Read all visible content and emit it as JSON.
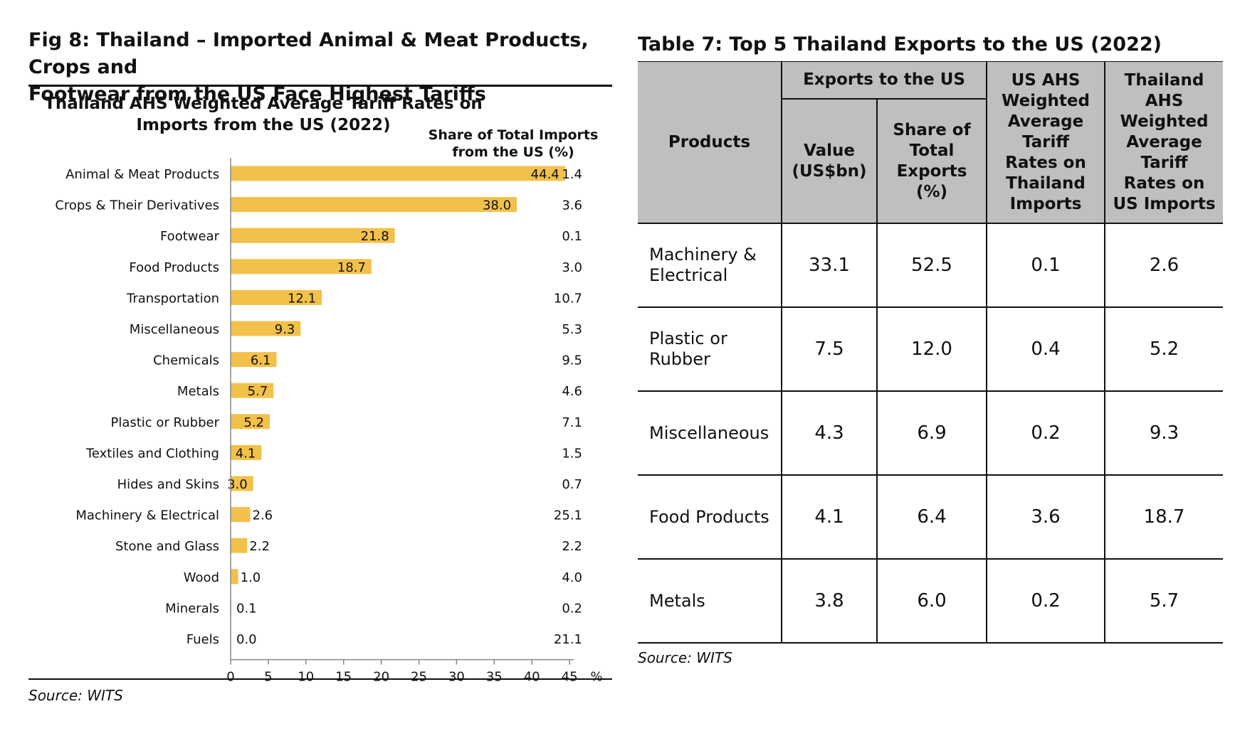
{
  "figure": {
    "title_line1": "Fig 8: Thailand – Imported Animal & Meat Products, Crops and",
    "title_line2": "Footwear from the US Face Highest Tariffs",
    "source": "Source: WITS"
  },
  "chart_data": {
    "type": "bar",
    "orientation": "horizontal",
    "title_line1": "Thailand AHS Weighted Average Tariff Rates on",
    "title_line2": "Imports from the US (2022)",
    "share_header_line1": "Share of Total Imports",
    "share_header_line2": "from the US (%)",
    "x_unit": "%",
    "xlim": [
      0,
      45
    ],
    "x_ticks": [
      "0",
      "5",
      "10",
      "15",
      "20",
      "25",
      "30",
      "35",
      "40",
      "45"
    ],
    "bar_color": "#f2c14b",
    "categories": [
      "Animal & Meat Products",
      "Crops & Their Derivatives",
      "Footwear",
      "Food Products",
      "Transportation",
      "Miscellaneous",
      "Chemicals",
      "Metals",
      "Plastic or Rubber",
      "Textiles and Clothing",
      "Hides and Skins",
      "Machinery & Electrical",
      "Stone and Glass",
      "Wood",
      "Minerals",
      "Fuels"
    ],
    "values": [
      44.4,
      38.0,
      21.8,
      18.7,
      12.1,
      9.3,
      6.1,
      5.7,
      5.2,
      4.1,
      3.0,
      2.6,
      2.2,
      1.0,
      0.1,
      0.0
    ],
    "value_labels": [
      "44.4",
      "38.0",
      "21.8",
      "18.7",
      "12.1",
      "9.3",
      "6.1",
      "5.7",
      "5.2",
      "4.1",
      "3.0",
      "2.6",
      "2.2",
      "1.0",
      "0.1",
      "0.0"
    ],
    "share_labels": [
      "1.4",
      "3.6",
      "0.1",
      "3.0",
      "10.7",
      "5.3",
      "9.5",
      "4.6",
      "7.1",
      "1.5",
      "0.7",
      "25.1",
      "2.2",
      "4.0",
      "0.2",
      "21.1"
    ]
  },
  "table": {
    "title": "Table 7: Top 5 Thailand Exports to the US (2022)",
    "header_products": "Products",
    "header_group": "Exports to the US",
    "header_value": [
      "Value",
      "(US$bn)"
    ],
    "header_share": [
      "Share of",
      "Total",
      "Exports",
      "(%)"
    ],
    "header_us_ahs": [
      "US AHS",
      "Weighted",
      "Average",
      "Tariff",
      "Rates on",
      "Thailand",
      "Imports"
    ],
    "header_th_ahs": [
      "Thailand",
      "AHS",
      "Weighted",
      "Average",
      "Tariff",
      "Rates on",
      "US Imports"
    ],
    "rows": [
      {
        "product": [
          "Machinery &",
          "Electrical"
        ],
        "value": "33.1",
        "share": "52.5",
        "us_ahs": "0.1",
        "th_ahs": "2.6"
      },
      {
        "product": [
          "Plastic or",
          "Rubber"
        ],
        "value": "7.5",
        "share": "12.0",
        "us_ahs": "0.4",
        "th_ahs": "5.2"
      },
      {
        "product": [
          "Miscellaneous"
        ],
        "value": "4.3",
        "share": "6.9",
        "us_ahs": "0.2",
        "th_ahs": "9.3"
      },
      {
        "product": [
          "Food Products"
        ],
        "value": "4.1",
        "share": "6.4",
        "us_ahs": "3.6",
        "th_ahs": "18.7"
      },
      {
        "product": [
          "Metals"
        ],
        "value": "3.8",
        "share": "6.0",
        "us_ahs": "0.2",
        "th_ahs": "5.7"
      }
    ],
    "source": "Source: WITS"
  }
}
